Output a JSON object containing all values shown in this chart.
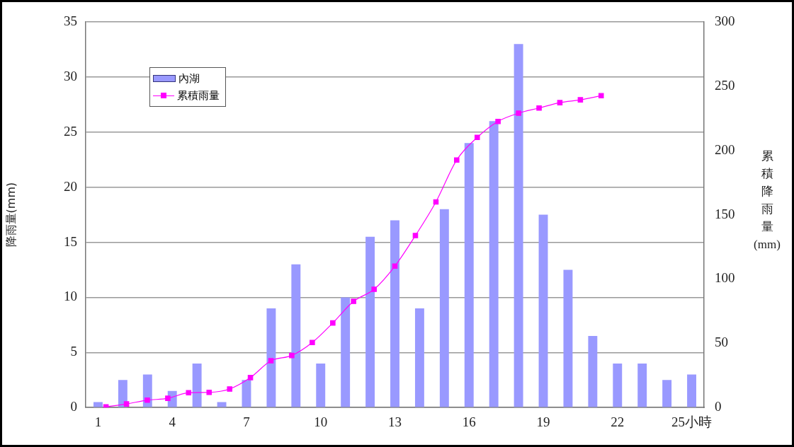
{
  "chart_data": {
    "type": "bar",
    "ylabel": "降雨量(mm)",
    "y2label": "累積降雨量(mm)",
    "x": [
      1,
      2,
      3,
      4,
      5,
      6,
      7,
      8,
      9,
      10,
      11,
      12,
      13,
      14,
      15,
      16,
      17,
      18,
      19,
      20,
      21,
      22,
      23,
      24,
      25
    ],
    "xlim": [
      0.5,
      25.5
    ],
    "xticks": [
      1,
      4,
      7,
      10,
      13,
      16,
      19,
      22,
      {
        "value": 25,
        "label": "25小時"
      }
    ],
    "ylim": [
      0,
      35
    ],
    "yticks": [
      0,
      5,
      10,
      15,
      20,
      25,
      30,
      35
    ],
    "y2lim": [
      0,
      300
    ],
    "y2ticks": [
      0,
      50,
      100,
      150,
      200,
      250,
      300
    ],
    "series": [
      {
        "name": "內湖",
        "color": "#9999ff",
        "values": [
          0.5,
          2.5,
          3,
          1.5,
          4,
          0.5,
          2.5,
          9,
          13,
          4,
          10,
          15.5,
          17,
          9,
          18,
          24,
          26,
          33,
          17.5,
          12.5,
          6.5,
          4,
          4,
          2.5,
          3
        ]
      },
      {
        "name": "累積雨量",
        "type": "line",
        "axis": "y2",
        "color": "#ff00ff",
        "x": [
          1.32,
          2.15,
          2.99,
          3.82,
          4.66,
          5.49,
          6.32,
          7.16,
          7.99,
          8.83,
          9.66,
          10.49,
          11.33,
          12.16,
          13.0,
          13.83,
          14.66,
          15.5,
          16.33,
          17.17,
          18.0,
          18.83,
          19.67,
          20.5,
          21.34
        ],
        "values": [
          0.5,
          2.8,
          5.7,
          7.2,
          11.5,
          11.8,
          14.4,
          23.3,
          36.4,
          40.5,
          50.6,
          65.8,
          82.6,
          92,
          110,
          133.8,
          160,
          192.6,
          210.2,
          222.6,
          229,
          233,
          237.2,
          239.4,
          242.6
        ]
      }
    ],
    "marker": "square",
    "grid": "y",
    "legend": "top left"
  }
}
